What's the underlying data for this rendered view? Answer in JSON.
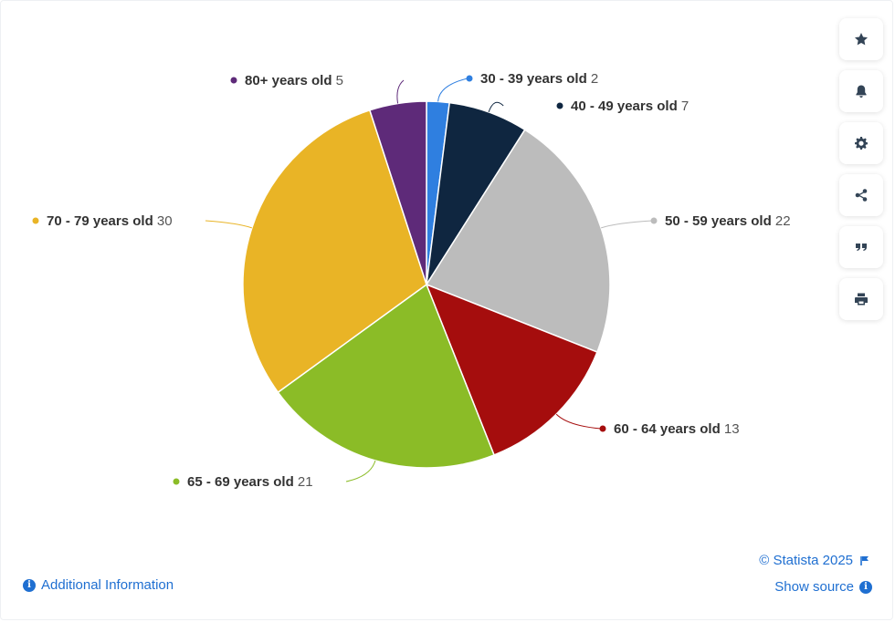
{
  "chart_data": {
    "type": "pie",
    "slices": [
      {
        "label": "30 - 39 years old",
        "value": 2,
        "color": "#2f7fe0"
      },
      {
        "label": "40 - 49 years old",
        "value": 7,
        "color": "#0f2640"
      },
      {
        "label": "50 - 59 years old",
        "value": 22,
        "color": "#bcbcbc"
      },
      {
        "label": "60 - 64 years old",
        "value": 13,
        "color": "#a50d0d"
      },
      {
        "label": "65 - 69 years old",
        "value": 21,
        "color": "#8bbc27"
      },
      {
        "label": "70 - 79 years old",
        "value": 30,
        "color": "#e9b426"
      },
      {
        "label": "80+ years old",
        "value": 5,
        "color": "#5e2a79"
      }
    ]
  },
  "toolbar": {
    "icons": [
      "star-icon",
      "bell-icon",
      "gear-icon",
      "share-icon",
      "quote-icon",
      "print-icon"
    ]
  },
  "footer": {
    "additional_info": "Additional Information",
    "copyright": "© Statista 2025",
    "show_source": "Show source",
    "info_icon": "i"
  }
}
